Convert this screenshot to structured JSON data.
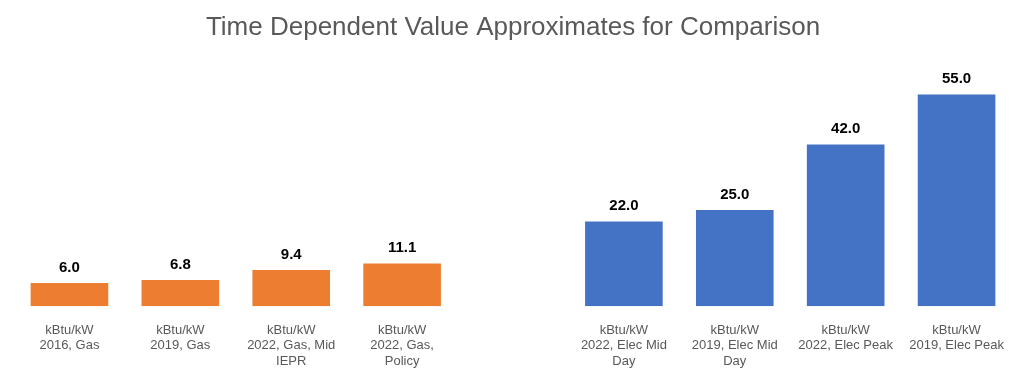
{
  "chart_data": {
    "type": "bar",
    "title": "Time Dependent Value Approximates for Comparison",
    "categories": [
      [
        "kBtu/kW",
        "2016, Gas"
      ],
      [
        "kBtu/kW",
        "2019, Gas"
      ],
      [
        "kBtu/kW",
        "2022, Gas, Mid",
        "IEPR"
      ],
      [
        "kBtu/kW",
        "2022, Gas,",
        "Policy"
      ],
      null,
      [
        "kBtu/kW",
        "2022, Elec Mid",
        "Day"
      ],
      [
        "kBtu/kW",
        "2019, Elec Mid",
        "Day"
      ],
      [
        "kBtu/kW",
        "2022, Elec Peak"
      ],
      [
        "kBtu/kW",
        "2019, Elec Peak"
      ]
    ],
    "values": [
      6,
      6.8,
      9.4,
      11.1,
      null,
      22,
      25,
      42,
      55
    ],
    "value_labels": [
      "6.0",
      "6.8",
      "9.4",
      "11.1",
      null,
      "22.0",
      "25.0",
      "42.0",
      "55.0"
    ],
    "colors": [
      "#ed7d31",
      "#ed7d31",
      "#ed7d31",
      "#ed7d31",
      null,
      "#4472c4",
      "#4472c4",
      "#4472c4",
      "#4472c4"
    ],
    "ylim": [
      0,
      60
    ],
    "grid": false,
    "data_labels": true,
    "tick_labels": "x"
  }
}
